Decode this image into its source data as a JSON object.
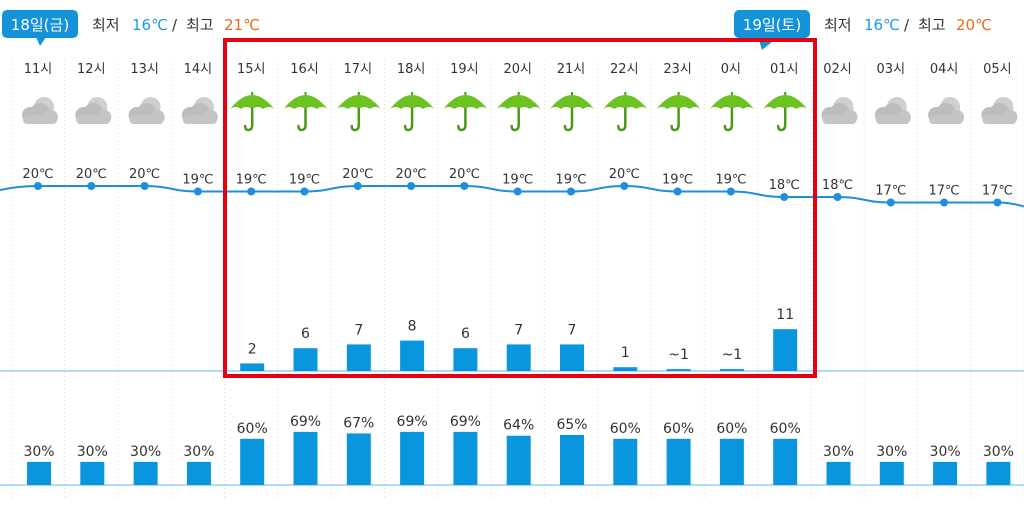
{
  "days": [
    {
      "badge": "18일(금)",
      "min_label": "최저",
      "min": "16℃",
      "sep": "/",
      "max_label": "최고",
      "max": "21℃"
    },
    {
      "badge": "19일(토)",
      "min_label": "최저",
      "min": "16℃",
      "sep": "/",
      "max_label": "최고",
      "max": "20℃"
    }
  ],
  "chart_data": {
    "type": "table",
    "hours": [
      "11시",
      "12시",
      "13시",
      "14시",
      "15시",
      "16시",
      "17시",
      "18시",
      "19시",
      "20시",
      "21시",
      "22시",
      "23시",
      "0시",
      "01시",
      "02시",
      "03시",
      "04시",
      "05시"
    ],
    "icons": [
      "cloudy-icon",
      "cloudy-icon",
      "cloudy-icon",
      "cloudy-icon",
      "umbrella-icon",
      "umbrella-icon",
      "umbrella-icon",
      "umbrella-icon",
      "umbrella-icon",
      "umbrella-icon",
      "umbrella-icon",
      "umbrella-icon",
      "umbrella-icon",
      "umbrella-icon",
      "umbrella-icon",
      "cloudy-icon",
      "cloudy-icon",
      "cloudy-icon",
      "cloudy-icon"
    ],
    "temperature": {
      "values": [
        20,
        20,
        20,
        19,
        19,
        19,
        20,
        20,
        20,
        19,
        19,
        20,
        19,
        19,
        18,
        18,
        17,
        17,
        17
      ],
      "labels": [
        "20℃",
        "20℃",
        "20℃",
        "19℃",
        "19℃",
        "19℃",
        "20℃",
        "20℃",
        "20℃",
        "19℃",
        "19℃",
        "20℃",
        "19℃",
        "19℃",
        "18℃",
        "18℃",
        "17℃",
        "17℃",
        "17℃"
      ]
    },
    "precipitation": {
      "values": [
        null,
        null,
        null,
        null,
        2,
        6,
        7,
        8,
        6,
        7,
        7,
        1,
        0.5,
        0.5,
        11,
        null,
        null,
        null,
        null
      ],
      "labels": [
        "",
        "",
        "",
        "",
        "2",
        "6",
        "7",
        "8",
        "6",
        "7",
        "7",
        "1",
        "~1",
        "~1",
        "11",
        "",
        "",
        "",
        ""
      ]
    },
    "probability": {
      "values": [
        30,
        30,
        30,
        30,
        60,
        69,
        67,
        69,
        69,
        64,
        65,
        60,
        60,
        60,
        60,
        30,
        30,
        30,
        30
      ],
      "labels": [
        "30%",
        "30%",
        "30%",
        "30%",
        "60%",
        "69%",
        "67%",
        "69%",
        "69%",
        "64%",
        "65%",
        "60%",
        "60%",
        "60%",
        "60%",
        "30%",
        "30%",
        "30%",
        "30%"
      ]
    },
    "highlight_range": [
      "15시",
      "01시"
    ],
    "colors": {
      "bar": "#0a96de",
      "line": "#1e8fdc",
      "highlight": "#e60012",
      "icon_rain": "#6cc221",
      "icon_cloud": "#b8b8b8",
      "min_temp": "#1e9be8",
      "max_temp": "#e96d1c",
      "badge": "#1593d9"
    }
  }
}
